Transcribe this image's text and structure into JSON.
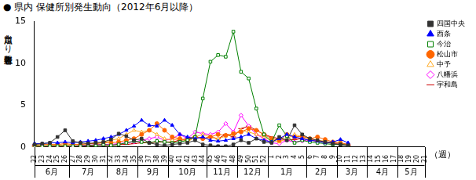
{
  "chart_data": {
    "type": "line",
    "title": "● 県内 保健所別発生動向（2012年6月以降）",
    "y_label": "定点当たり患者報告数",
    "x_label": "（週）",
    "categories": [
      22,
      23,
      24,
      25,
      26,
      27,
      28,
      29,
      30,
      31,
      32,
      33,
      34,
      35,
      36,
      37,
      38,
      39,
      40,
      41,
      42,
      43,
      44,
      45,
      46,
      47,
      48,
      49,
      50,
      51,
      52,
      1,
      2,
      3,
      4,
      5,
      6,
      7,
      8,
      9,
      10,
      11,
      12,
      13,
      14,
      15,
      16,
      17,
      18,
      19,
      20,
      21
    ],
    "x_groups": [
      {
        "label": "6月",
        "count": 5
      },
      {
        "label": "7月",
        "count": 5
      },
      {
        "label": "8月",
        "count": 4
      },
      {
        "label": "9月",
        "count": 4
      },
      {
        "label": "10月",
        "count": 5
      },
      {
        "label": "11月",
        "count": 4
      },
      {
        "label": "12月",
        "count": 4
      },
      {
        "label": "1月",
        "count": 5
      },
      {
        "label": "2月",
        "count": 4
      },
      {
        "label": "3月",
        "count": 4
      },
      {
        "label": "4月",
        "count": 4
      },
      {
        "label": "5月",
        "count": 4
      }
    ],
    "series": [
      {
        "name": "四国中央",
        "color": "#333333",
        "marker": "square",
        "values": [
          0.3,
          0.4,
          0.5,
          1.2,
          2.0,
          0.7,
          0.5,
          0.4,
          0.5,
          0.6,
          0.9,
          1.6,
          1.3,
          0.8,
          1.0,
          0.5,
          0.3,
          0.2,
          0.3,
          0.4,
          0.5,
          0.8,
          0.3,
          0.2,
          0.1,
          0.1,
          0.3,
          0.8,
          0.5,
          1.0,
          0.6,
          0.5,
          1.2,
          0.8,
          2.6,
          1.5,
          1.0,
          0.8,
          0.6,
          0.4,
          0.3,
          0.2,
          null,
          null,
          null,
          null,
          null,
          null,
          null,
          null,
          null,
          null
        ]
      },
      {
        "name": "西条",
        "color": "#0000ff",
        "marker": "triangle",
        "values": [
          0.4,
          0.4,
          0.5,
          0.5,
          0.6,
          0.5,
          0.6,
          0.7,
          0.8,
          1.0,
          1.2,
          1.5,
          2.0,
          2.5,
          3.2,
          2.6,
          2.5,
          3.2,
          2.6,
          1.5,
          1.2,
          1.0,
          1.2,
          0.8,
          0.7,
          0.8,
          1.0,
          1.2,
          1.5,
          1.0,
          0.8,
          0.6,
          1.0,
          1.5,
          1.2,
          1.0,
          0.8,
          0.7,
          0.5,
          0.6,
          0.9,
          0.5,
          null,
          null,
          null,
          null,
          null,
          null,
          null,
          null,
          null,
          null
        ]
      },
      {
        "name": "今治",
        "color": "#008000",
        "marker": "square_open",
        "values": [
          0.1,
          0.1,
          0.1,
          0.1,
          0.1,
          0.1,
          0.1,
          0.2,
          0.2,
          0.3,
          0.2,
          0.3,
          0.5,
          0.7,
          0.6,
          0.5,
          0.7,
          0.6,
          0.5,
          0.6,
          0.8,
          1.2,
          5.8,
          10.2,
          11.0,
          10.8,
          13.8,
          9.0,
          8.2,
          4.6,
          1.5,
          0.6,
          2.6,
          1.3,
          0.5,
          0.8,
          0.6,
          0.5,
          0.4,
          0.3,
          0.3,
          0.2,
          null,
          null,
          null,
          null,
          null,
          null,
          null,
          null,
          null,
          null
        ]
      },
      {
        "name": "松山市",
        "color": "#ff6600",
        "marker": "circle",
        "values": [
          0.2,
          0.3,
          0.3,
          0.3,
          0.4,
          0.3,
          0.3,
          0.4,
          0.4,
          0.5,
          0.5,
          0.6,
          0.8,
          1.0,
          1.5,
          2.0,
          2.8,
          2.0,
          1.2,
          1.0,
          0.8,
          1.2,
          1.0,
          1.2,
          1.5,
          1.4,
          1.6,
          1.8,
          2.2,
          2.0,
          1.5,
          1.0,
          0.8,
          1.5,
          1.2,
          1.3,
          1.0,
          1.2,
          0.9,
          0.6,
          0.5,
          0.3,
          null,
          null,
          null,
          null,
          null,
          null,
          null,
          null,
          null,
          null
        ]
      },
      {
        "name": "中予",
        "color": "#ffaa22",
        "marker": "triangle_open",
        "values": [
          0.1,
          0.1,
          0.2,
          0.2,
          0.2,
          0.3,
          0.3,
          0.4,
          0.5,
          0.5,
          0.8,
          1.0,
          1.5,
          2.0,
          1.8,
          2.0,
          1.5,
          1.0,
          0.8,
          1.0,
          0.6,
          1.2,
          1.5,
          1.2,
          1.0,
          1.3,
          1.5,
          2.0,
          1.8,
          1.5,
          1.2,
          0.8,
          0.6,
          1.0,
          1.5,
          1.2,
          1.0,
          0.8,
          0.7,
          0.5,
          0.4,
          0.3,
          null,
          null,
          null,
          null,
          null,
          null,
          null,
          null,
          null,
          null
        ]
      },
      {
        "name": "八幡浜",
        "color": "#ff00ff",
        "marker": "diamond_open",
        "values": [
          0.1,
          0.1,
          0.1,
          0.1,
          0.1,
          0.1,
          0.2,
          0.2,
          0.3,
          0.3,
          0.3,
          0.4,
          0.5,
          0.6,
          0.8,
          1.0,
          1.2,
          0.8,
          1.0,
          1.5,
          1.0,
          1.8,
          1.6,
          1.5,
          1.8,
          2.8,
          1.8,
          3.8,
          2.5,
          1.5,
          1.0,
          0.5,
          0.4,
          0.8,
          0.6,
          0.7,
          0.9,
          0.8,
          0.6,
          0.5,
          0.4,
          0.3,
          null,
          null,
          null,
          null,
          null,
          null,
          null,
          null,
          null,
          null
        ]
      },
      {
        "name": "宇和島",
        "color": "#cc0000",
        "marker": "dash",
        "values": [
          0.1,
          0.1,
          0.1,
          0.1,
          0.1,
          0.1,
          0.1,
          0.1,
          0.2,
          0.2,
          0.2,
          0.3,
          0.3,
          0.4,
          0.5,
          0.5,
          0.6,
          0.6,
          0.6,
          0.8,
          1.0,
          1.2,
          1.0,
          1.2,
          1.0,
          1.5,
          1.2,
          2.2,
          2.5,
          2.0,
          1.5,
          1.2,
          1.0,
          0.8,
          0.9,
          1.0,
          0.8,
          0.7,
          0.6,
          0.5,
          0.3,
          0.2,
          null,
          null,
          null,
          null,
          null,
          null,
          null,
          null,
          null,
          null
        ]
      }
    ],
    "ylim": [
      0,
      15
    ],
    "yticks": [
      0,
      5,
      10,
      15
    ],
    "grid": false,
    "legend": "right"
  }
}
